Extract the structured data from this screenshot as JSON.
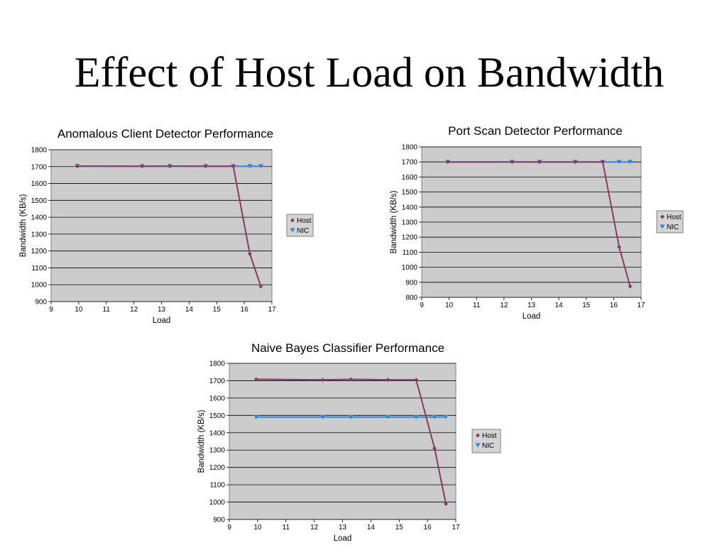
{
  "slide_title": "Effect of Host Load on Bandwidth",
  "colors": {
    "host": "#8b3a62",
    "nic": "#2e86de",
    "plot_bg": "#cccccc",
    "grid": "#000000"
  },
  "chart_data": [
    {
      "type": "line",
      "title": "Anomalous Client Detector Performance",
      "xlabel": "Load",
      "ylabel": "Bandwidth (KB/s)",
      "xlim": [
        9,
        17
      ],
      "ylim": [
        900,
        1800
      ],
      "x_ticks": [
        "9",
        "10",
        "11",
        "12",
        "13",
        "14",
        "15",
        "16",
        "17"
      ],
      "y_ticks": [
        "900",
        "1000",
        "1100",
        "1200",
        "1300",
        "1400",
        "1500",
        "1600",
        "1700",
        "1800"
      ],
      "grid": "horizontal",
      "legend": "right",
      "series": [
        {
          "name": "Host",
          "marker": "diamond",
          "x": [
            9.95,
            12.3,
            13.3,
            14.6,
            15.6,
            16.2,
            16.6
          ],
          "y": [
            1703,
            1702,
            1703,
            1702,
            1702,
            1183,
            990
          ]
        },
        {
          "name": "NIC",
          "marker": "triangle-down",
          "x": [
            9.95,
            12.3,
            13.3,
            14.6,
            15.6,
            16.2,
            16.6
          ],
          "y": [
            1703,
            1702,
            1703,
            1702,
            1702,
            1702,
            1702
          ]
        }
      ]
    },
    {
      "type": "line",
      "title": "Port Scan Detector Performance",
      "xlabel": "Load",
      "ylabel": "Bandwidth (KB/s)",
      "xlim": [
        9,
        17
      ],
      "ylim": [
        800,
        1800
      ],
      "x_ticks": [
        "9",
        "10",
        "11",
        "12",
        "13",
        "14",
        "15",
        "16",
        "17"
      ],
      "y_ticks": [
        "800",
        "900",
        "1000",
        "1100",
        "1200",
        "1300",
        "1400",
        "1500",
        "1600",
        "1700",
        "1800"
      ],
      "grid": "horizontal",
      "legend": "right",
      "series": [
        {
          "name": "Host",
          "marker": "diamond",
          "x": [
            9.95,
            12.3,
            13.3,
            14.6,
            15.6,
            16.2,
            16.6
          ],
          "y": [
            1700,
            1700,
            1700,
            1700,
            1700,
            1135,
            873
          ]
        },
        {
          "name": "NIC",
          "marker": "triangle-down",
          "x": [
            9.95,
            12.3,
            13.3,
            14.6,
            15.6,
            16.2,
            16.6
          ],
          "y": [
            1700,
            1700,
            1700,
            1700,
            1700,
            1700,
            1700
          ]
        }
      ]
    },
    {
      "type": "line",
      "title": "Naive Bayes Classifier Performance",
      "xlabel": "Load",
      "ylabel": "Bandwidth (KB/s)",
      "xlim": [
        9,
        17
      ],
      "ylim": [
        900,
        1800
      ],
      "x_ticks": [
        "9",
        "10",
        "11",
        "12",
        "13",
        "14",
        "15",
        "16",
        "17"
      ],
      "y_ticks": [
        "900",
        "1000",
        "1100",
        "1200",
        "1300",
        "1400",
        "1500",
        "1600",
        "1700",
        "1800"
      ],
      "grid": "horizontal",
      "legend": "right",
      "series": [
        {
          "name": "Host",
          "marker": "diamond",
          "x": [
            9.95,
            12.3,
            13.3,
            14.6,
            15.6,
            16.25,
            16.65
          ],
          "y": [
            1708,
            1705,
            1708,
            1705,
            1705,
            1310,
            990
          ]
        },
        {
          "name": "NIC",
          "marker": "triangle-down",
          "x": [
            9.95,
            12.3,
            13.3,
            14.6,
            15.6,
            16.25,
            16.65
          ],
          "y": [
            1490,
            1490,
            1490,
            1490,
            1490,
            1490,
            1490
          ]
        }
      ]
    }
  ]
}
